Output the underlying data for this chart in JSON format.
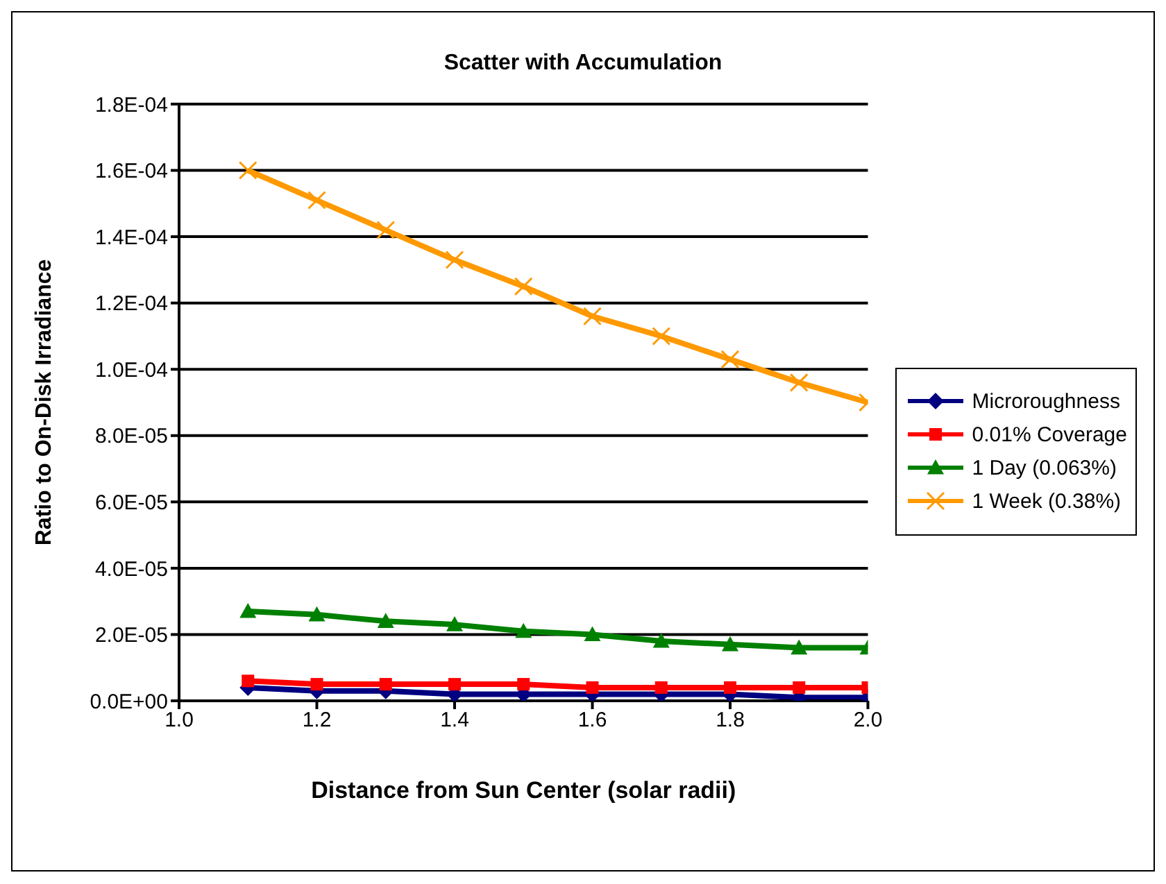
{
  "chart_data": {
    "type": "line",
    "title": "Scatter with Accumulation",
    "xlabel": "Distance from Sun Center (solar radii)",
    "ylabel": "Ratio to On-Disk Irradiance",
    "x": [
      1.1,
      1.2,
      1.3,
      1.4,
      1.5,
      1.6,
      1.7,
      1.8,
      1.9,
      2.0
    ],
    "series": [
      {
        "name": "Microroughness",
        "color": "#000080",
        "marker": "diamond",
        "values": [
          4e-06,
          3e-06,
          3e-06,
          2e-06,
          2e-06,
          2e-06,
          2e-06,
          2e-06,
          1e-06,
          1e-06
        ]
      },
      {
        "name": "0.01% Coverage",
        "color": "#ff0000",
        "marker": "square",
        "values": [
          6e-06,
          5e-06,
          5e-06,
          5e-06,
          5e-06,
          4e-06,
          4e-06,
          4e-06,
          4e-06,
          4e-06
        ]
      },
      {
        "name": "1 Day (0.063%)",
        "color": "#008000",
        "marker": "triangle",
        "values": [
          2.7e-05,
          2.6e-05,
          2.4e-05,
          2.3e-05,
          2.1e-05,
          2e-05,
          1.8e-05,
          1.7e-05,
          1.6e-05,
          1.6e-05
        ]
      },
      {
        "name": "1 Week (0.38%)",
        "color": "#ff9900",
        "marker": "cross",
        "values": [
          0.00016,
          0.000151,
          0.000142,
          0.000133,
          0.000125,
          0.000116,
          0.00011,
          0.000103,
          9.6e-05,
          9e-05
        ]
      }
    ],
    "xlim": [
      1.0,
      2.0
    ],
    "xticks": [
      {
        "value": 1.0,
        "label": "1.0"
      },
      {
        "value": 1.2,
        "label": "1.2"
      },
      {
        "value": 1.4,
        "label": "1.4"
      },
      {
        "value": 1.6,
        "label": "1.6"
      },
      {
        "value": 1.8,
        "label": "1.8"
      },
      {
        "value": 2.0,
        "label": "2.0"
      }
    ],
    "ylim": [
      0,
      0.00018
    ],
    "yticks": [
      {
        "value": 0,
        "label": "0.0E+00"
      },
      {
        "value": 2e-05,
        "label": "2.0E-05"
      },
      {
        "value": 4e-05,
        "label": "4.0E-05"
      },
      {
        "value": 6e-05,
        "label": "6.0E-05"
      },
      {
        "value": 8e-05,
        "label": "8.0E-05"
      },
      {
        "value": 0.0001,
        "label": "1.0E-04"
      },
      {
        "value": 0.00012,
        "label": "1.2E-04"
      },
      {
        "value": 0.00014,
        "label": "1.4E-04"
      },
      {
        "value": 0.00016,
        "label": "1.6E-04"
      },
      {
        "value": 0.00018,
        "label": "1.8E-04"
      }
    ],
    "grid": "y",
    "legend": "right",
    "line_style": "solid"
  }
}
